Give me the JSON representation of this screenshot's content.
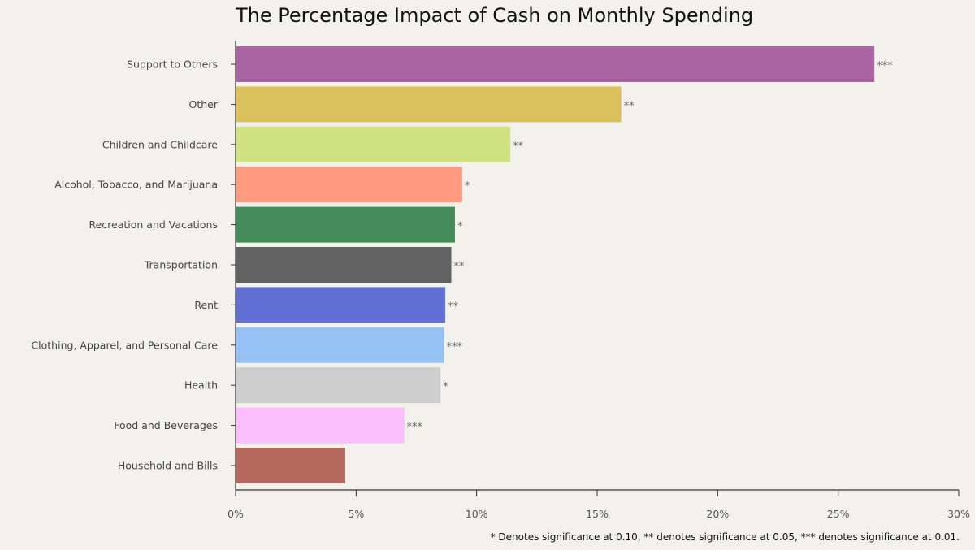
{
  "chart_data": {
    "type": "bar",
    "orientation": "horizontal",
    "title": "The Percentage Impact of Cash on Monthly Spending",
    "xlabel": "",
    "ylabel": "",
    "xlim": [
      0,
      30
    ],
    "x_ticks": [
      "0%",
      "5%",
      "10%",
      "15%",
      "20%",
      "25%",
      "30%"
    ],
    "grid": false,
    "categories": [
      "Support to Others",
      "Other",
      "Children and Childcare",
      "Alcohol, Tobacco, and Marijuana",
      "Recreation and Vacations",
      "Transportation",
      "Rent",
      "Clothing, Apparel, and Personal Care",
      "Health",
      "Food and Beverages",
      "Household and Bills"
    ],
    "values": [
      26.5,
      16.0,
      11.4,
      9.4,
      9.1,
      8.95,
      8.7,
      8.65,
      8.5,
      7.0,
      4.55
    ],
    "significance": [
      "***",
      "**",
      "**",
      "*",
      "*",
      "**",
      "**",
      "***",
      "*",
      "***",
      ""
    ],
    "colors": [
      "#a865a2",
      "#dbc25c",
      "#d0e27f",
      "#fd9a80",
      "#448c5a",
      "#626262",
      "#6270d3",
      "#96c1f5",
      "#cecece",
      "#fbbefd",
      "#b56a5d"
    ],
    "footnote": "* Denotes significance at 0.10, ** denotes significance at 0.05, *** denotes significance at 0.01."
  }
}
